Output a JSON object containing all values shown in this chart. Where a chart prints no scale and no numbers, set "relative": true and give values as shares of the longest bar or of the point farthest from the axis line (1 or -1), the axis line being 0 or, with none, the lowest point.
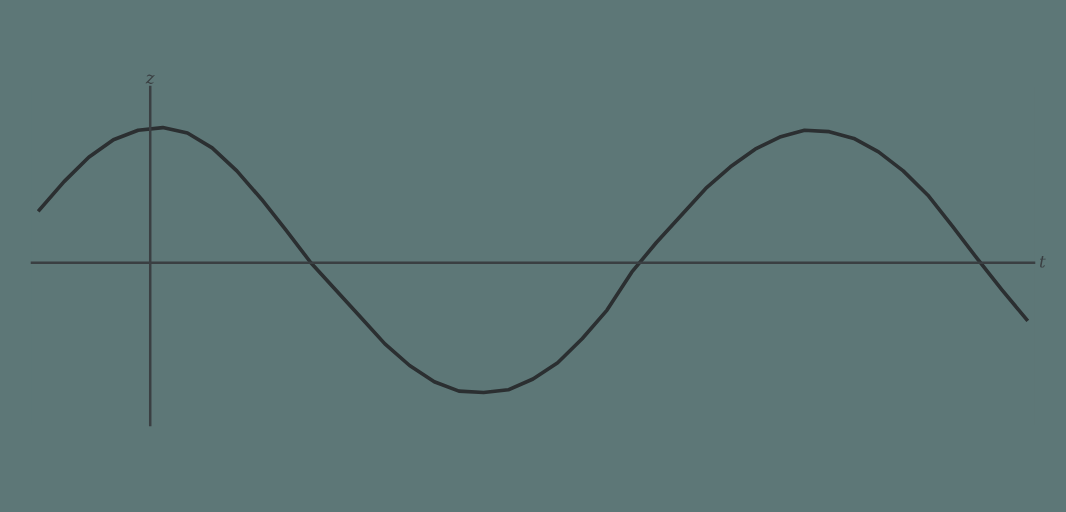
{
  "chart_data": {
    "type": "line",
    "relative": true,
    "xlabel": "t",
    "ylabel": "z",
    "color": "#2b2f31",
    "marker": "none",
    "line_style": "solid",
    "categories": [
      null,
      null,
      null,
      null,
      null,
      null,
      null,
      null,
      null,
      null,
      null,
      null,
      null,
      null,
      null,
      null,
      null,
      null,
      null,
      null,
      null,
      null,
      null,
      null,
      null,
      null,
      null,
      null,
      null,
      null,
      null,
      null,
      null,
      null,
      null,
      null,
      null,
      null,
      null,
      null,
      null
    ],
    "values": [
      0.39,
      0.6,
      0.78,
      0.91,
      0.98,
      1.0,
      0.96,
      0.85,
      0.68,
      0.47,
      0.24,
      0.0,
      -0.2,
      -0.4,
      -0.6,
      -0.76,
      -0.88,
      -0.95,
      -0.96,
      -0.94,
      -0.86,
      -0.74,
      -0.56,
      -0.35,
      -0.07,
      0.15,
      0.35,
      0.55,
      0.71,
      0.84,
      0.93,
      0.98,
      0.97,
      0.92,
      0.82,
      0.68,
      0.5,
      0.27,
      0.03,
      -0.2,
      -0.42
    ]
  }
}
